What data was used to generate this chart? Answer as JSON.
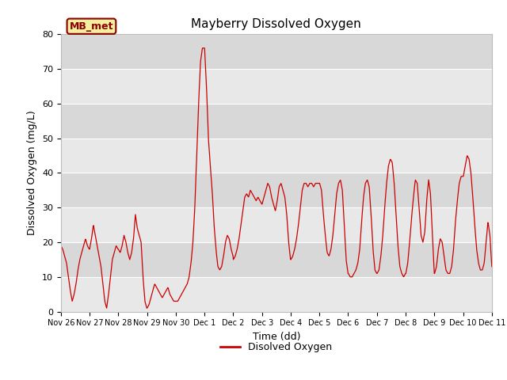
{
  "title": "Mayberry Dissolved Oxygen",
  "xlabel": "Time (dd)",
  "ylabel": "Dissolved Oxygen (mg/L)",
  "legend_label": "Disolved Oxygen",
  "tag_label": "MB_met",
  "ylim": [
    0,
    80
  ],
  "bg_color": "#e8e8e8",
  "line_color": "#cc0000",
  "grid_color": "#ffffff",
  "xtick_labels": [
    "Nov 26",
    "Nov 27",
    "Nov 28",
    "Nov 29",
    "Nov 30",
    "Dec 1",
    "Dec 2",
    "Dec 3",
    "Dec 4",
    "Dec 5",
    "Dec 6",
    "Dec 7",
    "Dec 8",
    "Dec 9",
    "Dec 10",
    "Dec 11"
  ],
  "xtick_positions": [
    0,
    1,
    2,
    3,
    4,
    5,
    6,
    7,
    8,
    9,
    10,
    11,
    12,
    13,
    14,
    15
  ],
  "yticks": [
    0,
    10,
    20,
    30,
    40,
    50,
    60,
    70,
    80
  ],
  "band_colors": [
    "#e8e8e8",
    "#d8d8d8"
  ]
}
